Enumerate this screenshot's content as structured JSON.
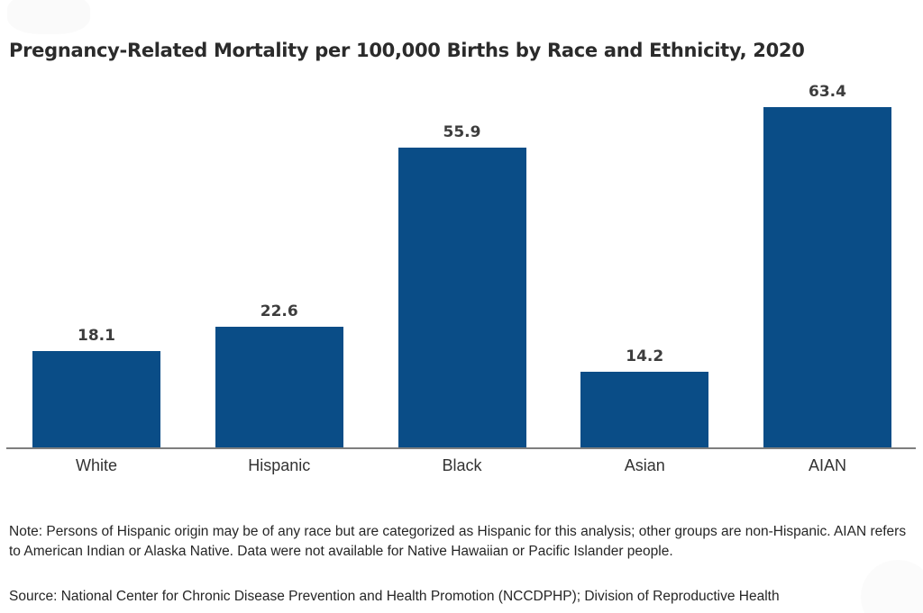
{
  "title": "Pregnancy-Related Mortality per 100,000 Births by Race and Ethnicity, 2020",
  "chart_data": {
    "type": "bar",
    "title": "Pregnancy-Related Mortality per 100,000 Births by Race and Ethnicity, 2020",
    "categories": [
      "White",
      "Hispanic",
      "Black",
      "Asian",
      "AIAN"
    ],
    "values": [
      18.1,
      22.6,
      55.9,
      14.2,
      63.4
    ],
    "value_labels": [
      "18.1",
      "22.6",
      "55.9",
      "14.2",
      "63.4"
    ],
    "xlabel": "",
    "ylabel": "",
    "ylim": [
      0,
      66
    ],
    "grid": false,
    "legend": false,
    "data_labels_position": "above-bars",
    "bar_color": "#0a4d87",
    "axis_color": "#7e7e7e"
  },
  "footnotes": {
    "note": "Note: Persons of Hispanic origin may be of any race but are categorized as Hispanic for this analysis; other groups are non-Hispanic. AIAN refers to American Indian or Alaska Native. Data were not available for Native Hawaiian or Pacific Islander people.",
    "source": "Source: National Center for Chronic Disease Prevention and Health Promotion (NCCDPHP); Division of Reproductive Health"
  },
  "colors": {
    "background": "#ffffff",
    "title_text": "#2b2b2b",
    "value_label_text": "#3d3d3d",
    "category_label_text": "#333333",
    "footnote_text": "#262626"
  }
}
